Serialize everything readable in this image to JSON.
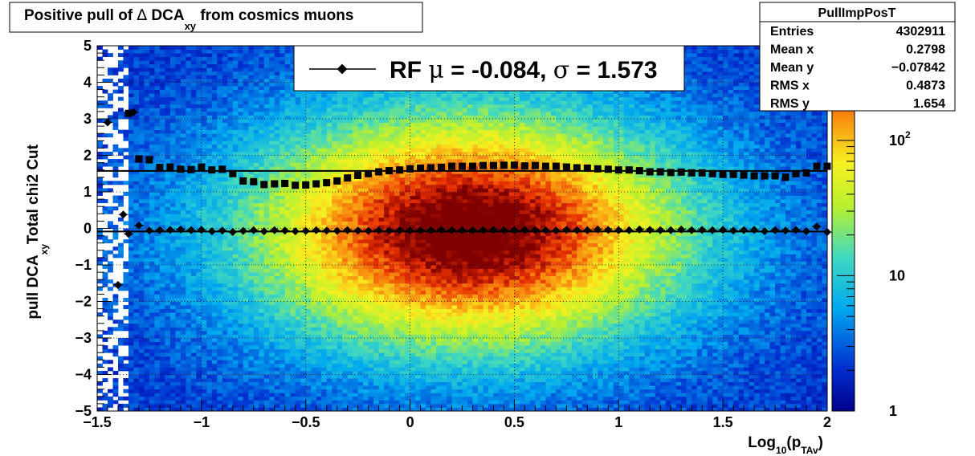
{
  "chart_data": {
    "type": "heatmap",
    "title_parts": {
      "before": "Positive pull of ",
      "delta": "∆",
      "mid": " DCA",
      "sub": "xy",
      "after": " from cosmics muons"
    },
    "xlabel_parts": {
      "main": "Log",
      "sub10": "10",
      "open": "(p",
      "subTAv": "TAv",
      "close": ")"
    },
    "ylabel_parts": {
      "main": "pull DCA",
      "sub": "xy"
    },
    "ylabel2": "Total chi2 Cut",
    "xlim": [
      -1.5,
      2.0
    ],
    "ylim": [
      -5,
      5
    ],
    "grid": true,
    "color_scale": "log",
    "zlim": [
      1,
      500
    ],
    "x_ticks": [
      {
        "value": -1.5,
        "label": "−1.5"
      },
      {
        "value": -1.0,
        "label": "−1"
      },
      {
        "value": -0.5,
        "label": "−0.5"
      },
      {
        "value": 0.0,
        "label": "0"
      },
      {
        "value": 0.5,
        "label": "0.5"
      },
      {
        "value": 1.0,
        "label": "1"
      },
      {
        "value": 1.5,
        "label": "1.5"
      },
      {
        "value": 2.0,
        "label": "2"
      }
    ],
    "y_ticks": [
      {
        "value": 5,
        "label": "5"
      },
      {
        "value": 4,
        "label": "4"
      },
      {
        "value": 3,
        "label": "3"
      },
      {
        "value": 2,
        "label": "2"
      },
      {
        "value": 1,
        "label": "1"
      },
      {
        "value": 0,
        "label": "0"
      },
      {
        "value": -1,
        "label": "−1"
      },
      {
        "value": -2,
        "label": "−2"
      },
      {
        "value": -3,
        "label": "−3"
      },
      {
        "value": -4,
        "label": "−4"
      },
      {
        "value": -5,
        "label": "−5"
      }
    ],
    "z_ticks": [
      {
        "value": 1,
        "label": "1"
      },
      {
        "value": 10,
        "label": "10"
      },
      {
        "value": 100,
        "label": "10",
        "sup": "2"
      }
    ],
    "legend": {
      "position": "top-center",
      "text_parts": {
        "a": "RF ",
        "mu": "μ",
        "b": " = -0.084, ",
        "sigma": "σ",
        "c": " =   1.573"
      }
    },
    "stats_box": {
      "name": "PullImpPosT",
      "position": "top-right",
      "rows": [
        {
          "label": "Entries",
          "value": "4302911"
        },
        {
          "label": "Mean x",
          "value": "0.2798"
        },
        {
          "label": "Mean y",
          "value": "−0.07842"
        },
        {
          "label": "RMS x",
          "value": "0.4873"
        },
        {
          "label": "RMS y",
          "value": "1.654"
        }
      ]
    },
    "fit_lines": [
      {
        "name": "sigma-fit",
        "y": 1.573
      },
      {
        "name": "mean-fit",
        "y": -0.084
      }
    ],
    "sigma_series": {
      "x": [
        -1.35,
        -1.3,
        -1.25,
        -1.2,
        -1.15,
        -1.1,
        -1.05,
        -1.0,
        -0.95,
        -0.9,
        -0.85,
        -0.8,
        -0.75,
        -0.7,
        -0.65,
        -0.6,
        -0.55,
        -0.5,
        -0.45,
        -0.4,
        -0.35,
        -0.3,
        -0.25,
        -0.2,
        -0.15,
        -0.1,
        -0.05,
        0.0,
        0.05,
        0.1,
        0.15,
        0.2,
        0.25,
        0.3,
        0.35,
        0.4,
        0.45,
        0.5,
        0.55,
        0.6,
        0.65,
        0.7,
        0.75,
        0.8,
        0.85,
        0.9,
        0.95,
        1.0,
        1.05,
        1.1,
        1.15,
        1.2,
        1.25,
        1.3,
        1.35,
        1.4,
        1.45,
        1.5,
        1.55,
        1.6,
        1.65,
        1.7,
        1.75,
        1.8,
        1.85,
        1.9,
        1.95,
        2.0
      ],
      "y": [
        3.15,
        1.9,
        1.88,
        1.67,
        1.68,
        1.62,
        1.61,
        1.68,
        1.6,
        1.62,
        1.5,
        1.3,
        1.28,
        1.2,
        1.22,
        1.23,
        1.18,
        1.19,
        1.22,
        1.25,
        1.3,
        1.38,
        1.45,
        1.5,
        1.55,
        1.58,
        1.6,
        1.63,
        1.65,
        1.66,
        1.67,
        1.7,
        1.7,
        1.7,
        1.72,
        1.72,
        1.73,
        1.73,
        1.71,
        1.72,
        1.7,
        1.7,
        1.68,
        1.66,
        1.65,
        1.63,
        1.62,
        1.6,
        1.6,
        1.58,
        1.55,
        1.55,
        1.53,
        1.54,
        1.52,
        1.52,
        1.5,
        1.48,
        1.48,
        1.46,
        1.44,
        1.44,
        1.44,
        1.4,
        1.5,
        1.52,
        1.7,
        1.7
      ]
    },
    "mean_series": {
      "x": [
        -1.45,
        -1.4,
        -1.375,
        -1.35,
        -1.325,
        -1.3,
        -1.25,
        -1.2,
        -1.15,
        -1.1,
        -1.05,
        -1.0,
        -0.95,
        -0.9,
        -0.85,
        -0.8,
        -0.75,
        -0.7,
        -0.65,
        -0.6,
        -0.55,
        -0.5,
        -0.45,
        -0.4,
        -0.35,
        -0.3,
        -0.25,
        -0.2,
        -0.15,
        -0.1,
        -0.05,
        0.0,
        0.05,
        0.1,
        0.15,
        0.2,
        0.25,
        0.3,
        0.35,
        0.4,
        0.45,
        0.5,
        0.55,
        0.6,
        0.65,
        0.7,
        0.75,
        0.8,
        0.85,
        0.9,
        0.95,
        1.0,
        1.05,
        1.1,
        1.15,
        1.2,
        1.25,
        1.3,
        1.35,
        1.4,
        1.45,
        1.5,
        1.55,
        1.6,
        1.65,
        1.7,
        1.75,
        1.8,
        1.85,
        1.9,
        1.95,
        2.0
      ],
      "y": [
        2.9,
        -1.55,
        0.38,
        -0.15,
        3.18,
        0.08,
        -0.06,
        -0.05,
        -0.04,
        -0.03,
        -0.05,
        -0.04,
        -0.08,
        -0.06,
        -0.1,
        -0.07,
        -0.05,
        -0.08,
        -0.05,
        -0.06,
        -0.08,
        -0.07,
        -0.05,
        -0.06,
        -0.07,
        -0.05,
        -0.06,
        -0.07,
        -0.05,
        -0.06,
        -0.05,
        -0.06,
        -0.05,
        -0.05,
        -0.04,
        -0.05,
        -0.05,
        -0.05,
        -0.05,
        -0.04,
        -0.05,
        -0.05,
        -0.04,
        -0.05,
        -0.05,
        -0.06,
        -0.04,
        -0.05,
        -0.05,
        -0.03,
        -0.04,
        -0.05,
        -0.05,
        -0.03,
        -0.04,
        -0.05,
        -0.05,
        -0.03,
        -0.05,
        -0.04,
        -0.05,
        -0.04,
        -0.06,
        -0.05,
        -0.04,
        -0.08,
        -0.05,
        -0.06,
        -0.04,
        -0.08,
        0.05,
        -0.1
      ]
    }
  }
}
